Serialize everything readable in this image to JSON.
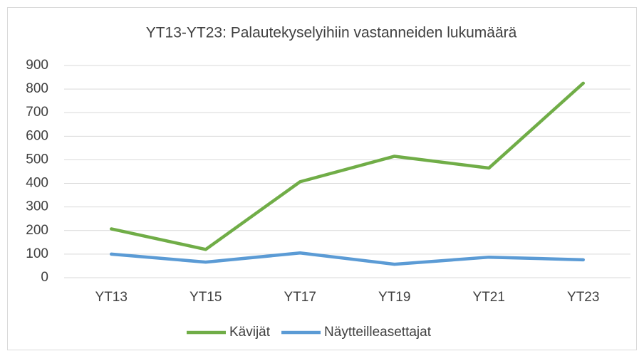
{
  "chart_data": {
    "type": "line",
    "title": "YT13-YT23: Palautekyselyihiin vastanneiden lukumäärä",
    "categories": [
      "YT13",
      "YT15",
      "YT17",
      "YT19",
      "YT21",
      "YT23"
    ],
    "series": [
      {
        "name": "Kävijät",
        "color": "#70ad47",
        "values": [
          207,
          120,
          407,
          515,
          465,
          825
        ]
      },
      {
        "name": "Näytteilleasettajat",
        "color": "#5b9bd5",
        "values": [
          100,
          66,
          105,
          57,
          87,
          76
        ]
      }
    ],
    "ylim": [
      0,
      900
    ],
    "yticks": [
      0,
      100,
      200,
      300,
      400,
      500,
      600,
      700,
      800,
      900
    ],
    "grid": true
  }
}
